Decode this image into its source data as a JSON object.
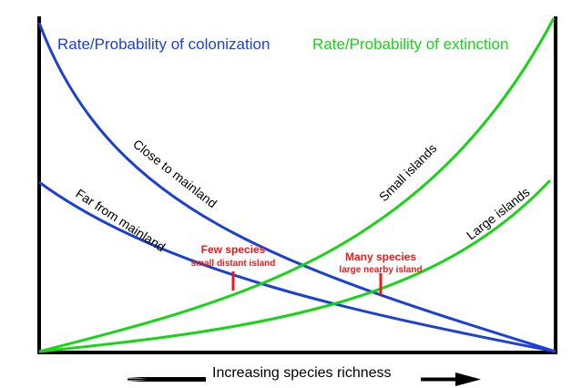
{
  "labels": {
    "colonization_title": "Rate/Probability of colonization",
    "extinction_title": "Rate/Probability of extinction",
    "close_to_mainland": "Close to mainland",
    "far_from_mainland": "Far from mainland",
    "small_islands": "Small islands",
    "large_islands": "Large islands",
    "few_species": "Few species",
    "few_species_sub": "small distant island",
    "many_species": "Many species",
    "many_species_sub": "large nearby island",
    "x_axis": "Increasing species richness"
  },
  "colors": {
    "colonization": "#1c3fd6",
    "extinction": "#17d417",
    "equilibrium_marker": "#e61c1c",
    "axes": "#000000"
  }
}
